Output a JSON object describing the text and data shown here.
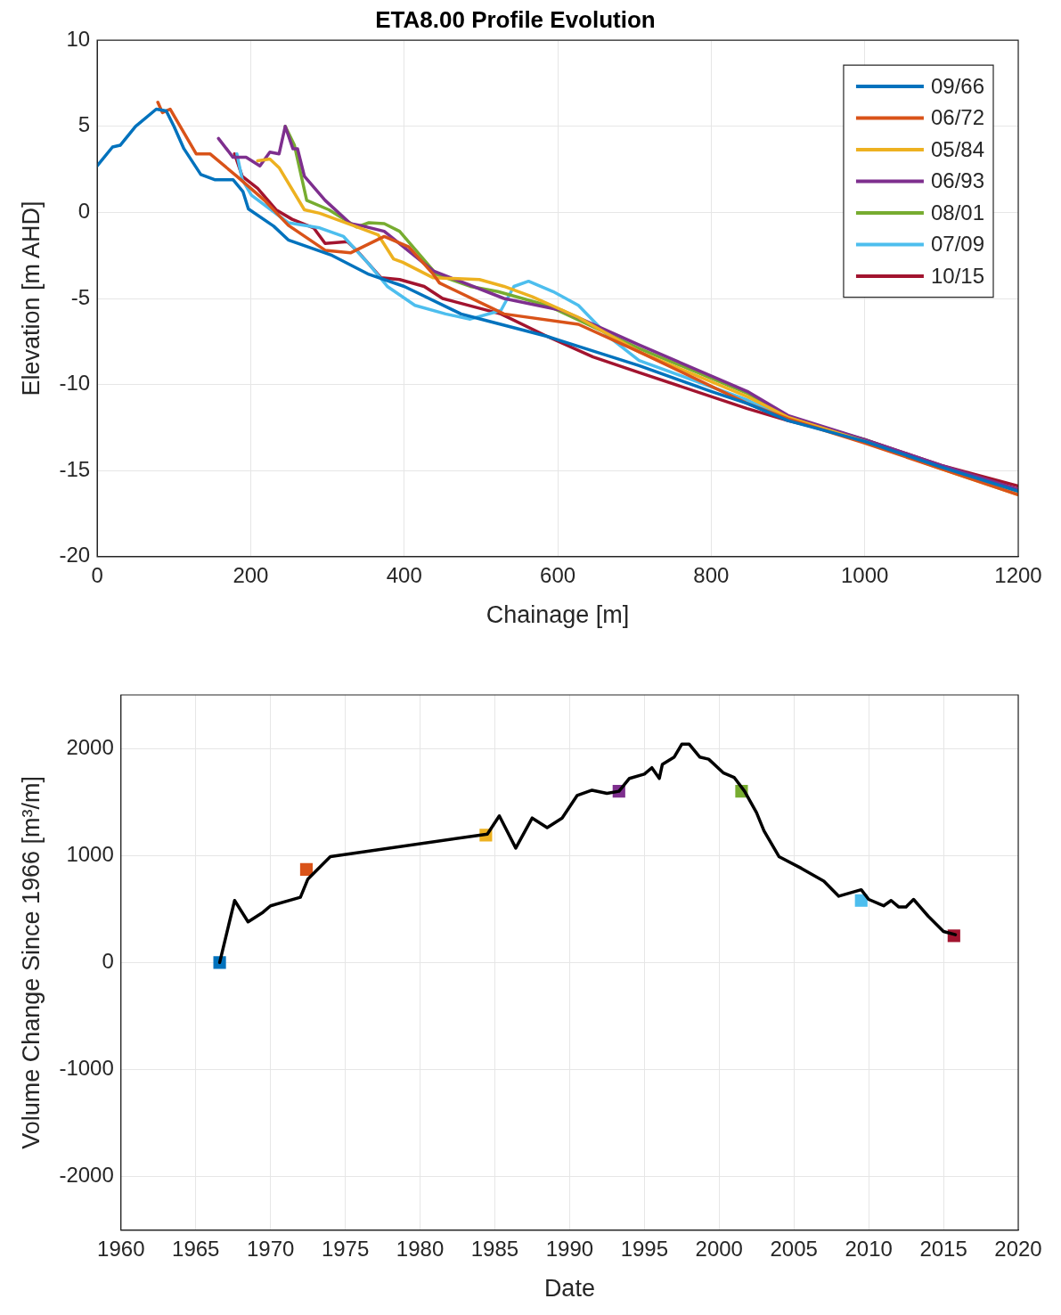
{
  "chart_data": [
    {
      "type": "line",
      "title": "ETA8.00 Profile Evolution",
      "xlabel": "Chainage [m]",
      "ylabel": "Elevation [m AHD]",
      "xlim": [
        0,
        1200
      ],
      "xticks": [
        0,
        200,
        400,
        600,
        800,
        1000,
        1200
      ],
      "ylim": [
        -20,
        10
      ],
      "yticks": [
        -20,
        -15,
        -10,
        -5,
        0,
        5,
        10
      ],
      "grid": true,
      "legend": "top right",
      "series": [
        {
          "name": "09/66",
          "color": "#0072bd",
          "x": [
            0,
            20,
            30,
            50,
            77,
            90,
            100,
            113,
            135,
            153,
            177,
            190,
            197,
            230,
            249,
            306,
            354,
            400,
            474,
            500,
            586,
            600,
            706,
            800,
            847,
            900,
            1000,
            1100,
            1200
          ],
          "values": [
            2.7,
            3.8,
            3.9,
            5,
            6,
            5.9,
            5,
            3.7,
            2.2,
            1.9,
            1.9,
            1.2,
            0.2,
            -0.8,
            -1.6,
            -2.5,
            -3.6,
            -4.3,
            -5.9,
            -6.2,
            -7.2,
            -7.4,
            -8.9,
            -10.4,
            -11.1,
            -12.1,
            -13.3,
            -14.8,
            -16.2
          ]
        },
        {
          "name": "06/72",
          "color": "#d95319",
          "x": [
            79,
            85,
            95,
            129,
            147,
            182,
            218,
            249,
            297,
            330,
            374,
            406,
            438,
            446,
            530,
            627,
            706,
            847,
            900,
            1000,
            1100,
            1200
          ],
          "values": [
            6.4,
            5.8,
            6,
            3.4,
            3.4,
            2.1,
            0.7,
            -0.75,
            -2.2,
            -2.35,
            -1.4,
            -2,
            -3.6,
            -4.1,
            -5.9,
            -6.5,
            -8.1,
            -11.1,
            -12,
            -13.4,
            -14.9,
            -16.4
          ]
        },
        {
          "name": "05/84",
          "color": "#edb120",
          "x": [
            209,
            225,
            237,
            270,
            290,
            342,
            366,
            386,
            398,
            438,
            498,
            530,
            567,
            627,
            706,
            847,
            900,
            1000,
            1100,
            1200
          ],
          "values": [
            3,
            3.1,
            2.6,
            0.15,
            -0.05,
            -0.9,
            -1.3,
            -2.7,
            -2.9,
            -3.8,
            -3.9,
            -4.3,
            -4.9,
            -6.1,
            -8.1,
            -10.7,
            -11.9,
            -13.3,
            -14.9,
            -16.4
          ]
        },
        {
          "name": "06/93",
          "color": "#7e2f8e",
          "x": [
            158,
            177,
            194,
            212,
            225,
            237,
            245,
            255,
            261,
            270,
            297,
            330,
            342,
            374,
            438,
            530,
            606,
            706,
            847,
            900,
            1000,
            1100,
            1200
          ],
          "values": [
            4.3,
            3.2,
            3.2,
            2.7,
            3.5,
            3.4,
            5,
            3.7,
            3.7,
            2.1,
            0.7,
            -0.65,
            -0.75,
            -1.1,
            -3.4,
            -5,
            -5.7,
            -7.7,
            -10.4,
            -11.8,
            -13.2,
            -14.7,
            -16.1
          ]
        },
        {
          "name": "08/01",
          "color": "#77ac30",
          "x": [
            245,
            257,
            273,
            302,
            338,
            354,
            374,
            394,
            442,
            486,
            522,
            586,
            706,
            847,
            900,
            1000,
            1100,
            1200
          ],
          "values": [
            5,
            3.9,
            0.7,
            0.15,
            -0.85,
            -0.6,
            -0.65,
            -1.1,
            -3.6,
            -4.3,
            -4.6,
            -5.4,
            -7.9,
            -10.5,
            -11.9,
            -13.2,
            -14.8,
            -16.2
          ]
        },
        {
          "name": "07/09",
          "color": "#4dbeee",
          "x": [
            182,
            189,
            201,
            249,
            290,
            321,
            354,
            378,
            414,
            454,
            486,
            526,
            543,
            562,
            594,
            627,
            666,
            706,
            847,
            900,
            1000
          ],
          "values": [
            3.4,
            1.9,
            1,
            -0.6,
            -0.9,
            -1.4,
            -3,
            -4.3,
            -5.4,
            -5.9,
            -6.2,
            -5.7,
            -4.3,
            -4,
            -4.6,
            -5.4,
            -7.2,
            -8.6,
            -10.9,
            -12,
            -13.3
          ]
        },
        {
          "name": "10/15",
          "color": "#a2142f",
          "x": [
            179,
            189,
            209,
            233,
            254,
            282,
            297,
            326,
            338,
            370,
            394,
            426,
            450,
            526,
            586,
            646,
            706,
            847,
            900,
            1000,
            1100,
            1200
          ],
          "values": [
            3.4,
            2.1,
            1.4,
            0.15,
            -0.4,
            -0.9,
            -1.8,
            -1.7,
            -2.2,
            -3.8,
            -3.9,
            -4.3,
            -5,
            -5.9,
            -7.2,
            -8.4,
            -9.3,
            -11.4,
            -12.1,
            -13.2,
            -14.7,
            -15.9
          ]
        }
      ]
    },
    {
      "type": "line",
      "xlabel": "Date",
      "ylabel": "Volume Change Since 1966 [m³/m]",
      "xlim": [
        1960,
        2020
      ],
      "xticks": [
        1960,
        1965,
        1970,
        1975,
        1980,
        1985,
        1990,
        1995,
        2000,
        2005,
        2010,
        2015,
        2020
      ],
      "ylim": [
        -2500,
        2500
      ],
      "yticks": [
        -2000,
        -1000,
        0,
        1000,
        2000
      ],
      "grid": true,
      "series": [
        {
          "color": "#000000",
          "x": [
            1966.6,
            1967.6,
            1968.5,
            1969.5,
            1970,
            1972,
            1972.5,
            1974,
            1984.5,
            1985.3,
            1986.4,
            1987.5,
            1988.5,
            1989.5,
            1990.5,
            1991.5,
            1992.5,
            1993.3,
            1994,
            1995,
            1995.5,
            1996,
            1996.2,
            1997,
            1997.5,
            1998,
            1998.7,
            1999.3,
            2000.3,
            2001,
            2001.7,
            2002.5,
            2003,
            2004,
            2005.5,
            2007,
            2008,
            2009.5,
            2010,
            2011,
            2011.5,
            2012,
            2012.5,
            2013,
            2014,
            2015,
            2015.8
          ],
          "values": [
            0,
            580,
            380,
            470,
            530,
            610,
            780,
            990,
            1200,
            1370,
            1070,
            1350,
            1260,
            1350,
            1560,
            1610,
            1580,
            1600,
            1720,
            1760,
            1820,
            1720,
            1850,
            1920,
            2040,
            2040,
            1920,
            1900,
            1770,
            1730,
            1600,
            1400,
            1230,
            990,
            880,
            760,
            620,
            680,
            590,
            530,
            580,
            520,
            520,
            590,
            430,
            290,
            260
          ]
        },
        {
          "type": "scatter",
          "marker": "square",
          "x": [
            1966.6,
            1972.4,
            1984.4,
            1993.3,
            2001.5,
            2009.5,
            2015.7
          ],
          "values": [
            0,
            870,
            1190,
            1600,
            1600,
            580,
            250
          ],
          "colors": [
            "#0072bd",
            "#d95319",
            "#edb120",
            "#7e2f8e",
            "#77ac30",
            "#4dbeee",
            "#a2142f"
          ]
        }
      ]
    }
  ]
}
